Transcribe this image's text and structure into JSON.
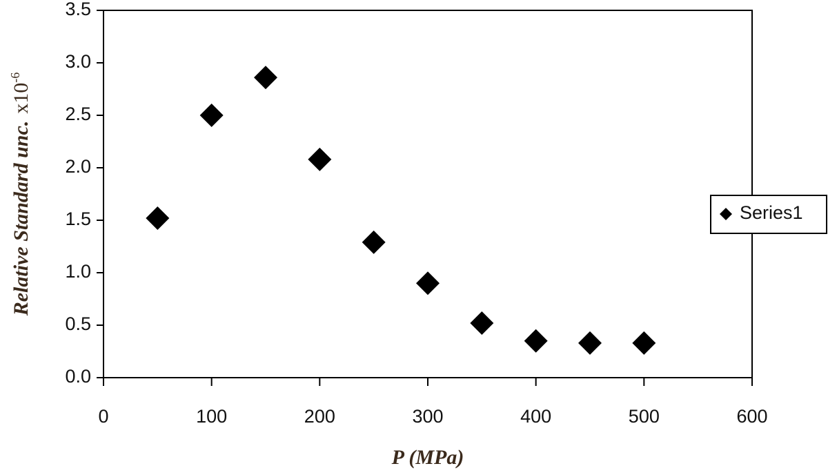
{
  "chart_data": {
    "type": "scatter",
    "xlabel": "P (MPa)",
    "ylabel": {
      "text": "Relative Standard unc.",
      "multiplier": "x10",
      "exponent": "-6"
    },
    "x": [
      50,
      100,
      150,
      200,
      250,
      300,
      350,
      400,
      450,
      500
    ],
    "series": [
      {
        "name": "Series1",
        "color": "#000000",
        "values": [
          1.52,
          2.5,
          2.86,
          2.08,
          1.29,
          0.9,
          0.52,
          0.35,
          0.33,
          0.33
        ]
      }
    ],
    "xlim": [
      0,
      600
    ],
    "xticks": [
      0,
      100,
      200,
      300,
      400,
      500,
      600
    ],
    "ylim": [
      0,
      3.5
    ],
    "yticks": [
      {
        "value": 0,
        "label": "0.0"
      },
      {
        "value": 0.5,
        "label": "0.5"
      },
      {
        "value": 1,
        "label": "1.0"
      },
      {
        "value": 1.5,
        "label": "1.5"
      },
      {
        "value": 2,
        "label": "2.0"
      },
      {
        "value": 2.5,
        "label": "2.5"
      },
      {
        "value": 3,
        "label": "3.0"
      },
      {
        "value": 3.5,
        "label": "3.5"
      }
    ],
    "legend": "right"
  }
}
